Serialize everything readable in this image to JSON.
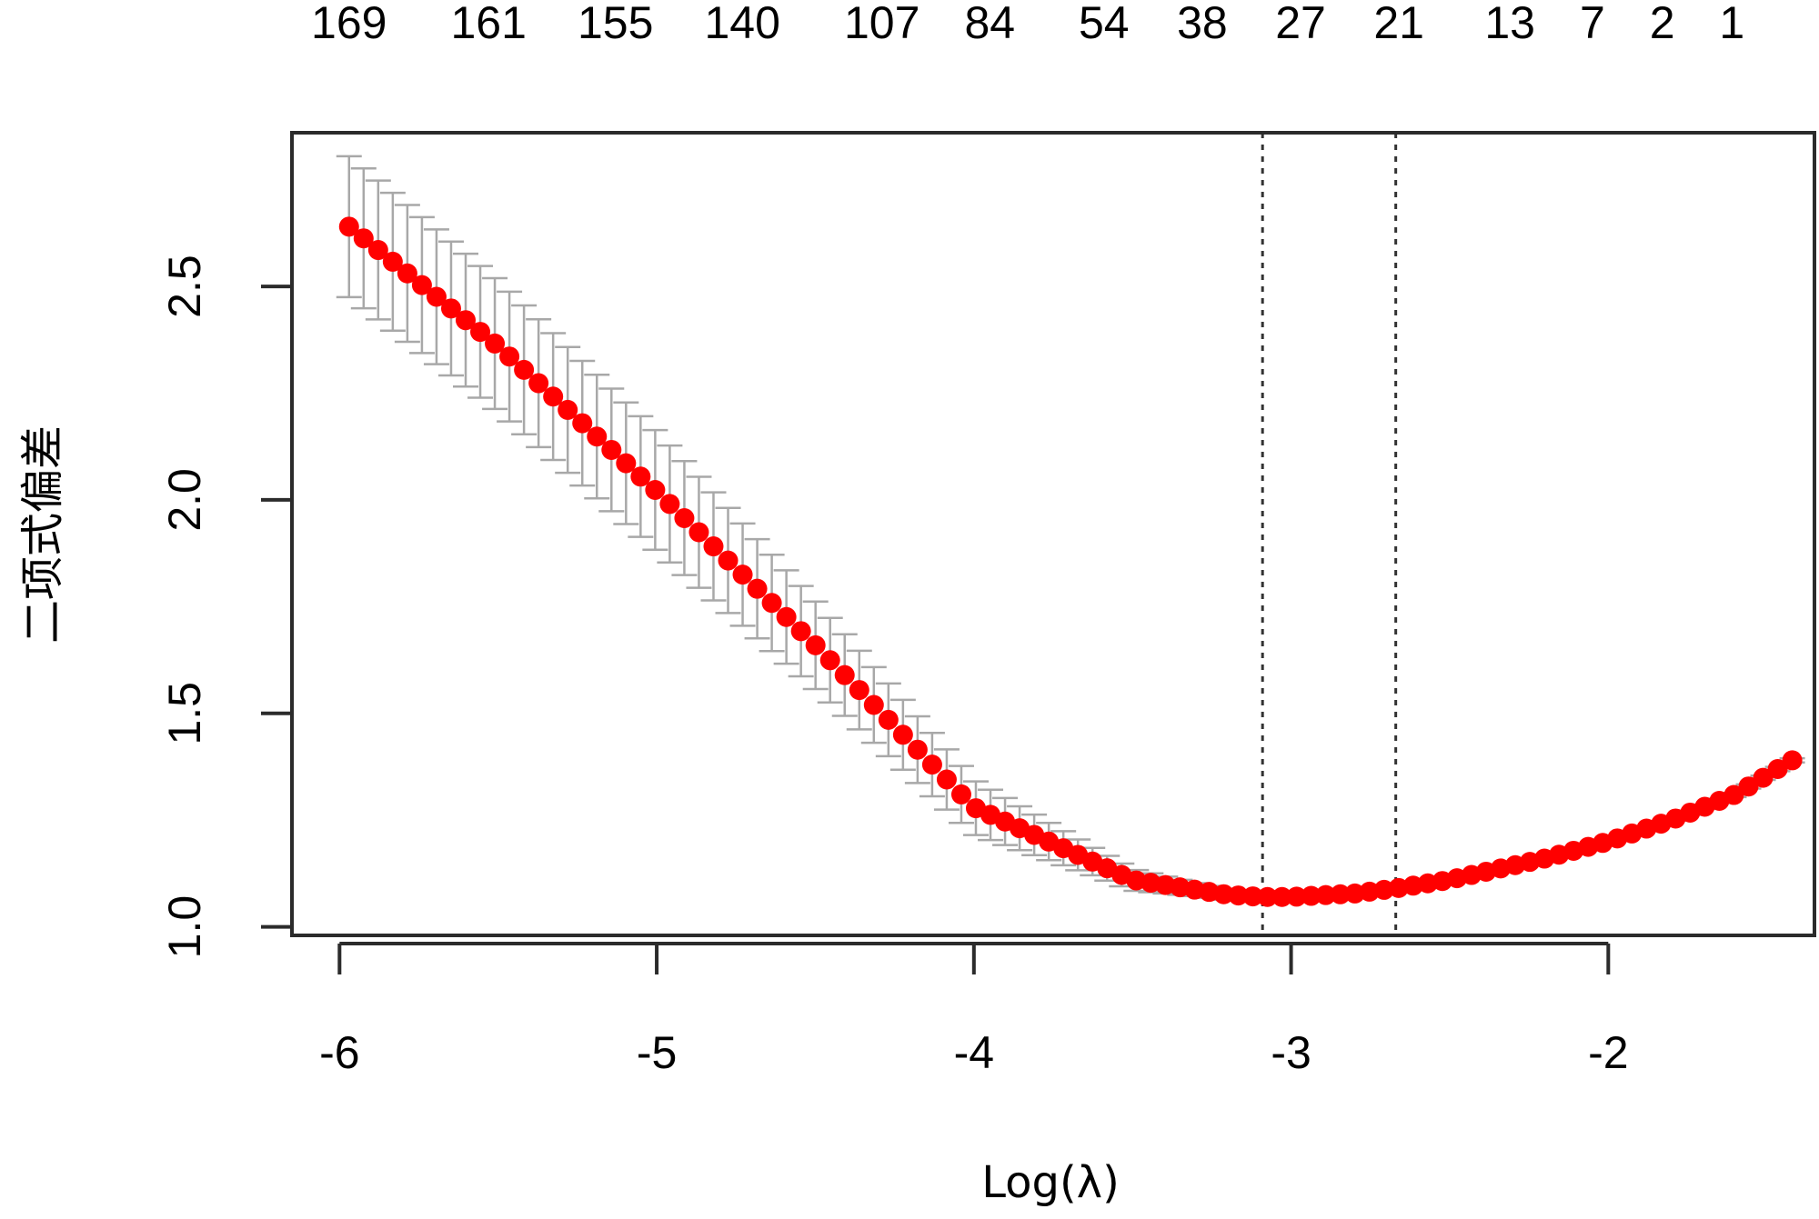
{
  "chart_data": {
    "type": "scatter",
    "title": "",
    "xlabel": "Log(λ)",
    "ylabel": "二项式偏差",
    "xlim": [
      -6.15,
      -1.35
    ],
    "ylim": [
      0.98,
      2.86
    ],
    "x_ticks": [
      -6,
      -5,
      -4,
      -3,
      -2
    ],
    "x_tick_labels": [
      "-6",
      "-5",
      "-4",
      "-3",
      "-2"
    ],
    "y_ticks": [
      1.0,
      1.5,
      2.0,
      2.5
    ],
    "y_tick_labels": [
      "1.0",
      "1.5",
      "2.0",
      "2.5"
    ],
    "top_axis": {
      "positions": [
        -5.97,
        -5.53,
        -5.13,
        -4.73,
        -4.29,
        -3.95,
        -3.59,
        -3.28,
        -2.97,
        -2.66,
        -2.31,
        -2.05,
        -1.83,
        -1.61
      ],
      "labels": [
        "169",
        "161",
        "155",
        "140",
        "107",
        "84",
        "54",
        "38",
        "27",
        "21",
        "13",
        "7",
        "2",
        "1"
      ]
    },
    "vlines": [
      -3.09,
      -2.67
    ],
    "point_color": "#ff0000",
    "errorbar_color": "#a8a8a8",
    "series": [
      {
        "x_range": [
          -5.97,
          -1.42
        ],
        "count": 100,
        "curve": {
          "x": [
            -5.97,
            -5.5,
            -5.0,
            -4.5,
            -4.0,
            -3.5,
            -3.2,
            -3.09,
            -3.0,
            -2.8,
            -2.67,
            -2.5,
            -2.2,
            -2.0,
            -1.8,
            -1.6,
            -1.42
          ],
          "y": [
            2.64,
            2.36,
            2.02,
            1.66,
            1.28,
            1.11,
            1.075,
            1.07,
            1.07,
            1.078,
            1.09,
            1.11,
            1.16,
            1.2,
            1.25,
            1.31,
            1.39
          ]
        },
        "error_half_width": {
          "x": [
            -5.97,
            -5.0,
            -4.2,
            -3.6,
            -3.3,
            -3.0,
            -2.5,
            -2.0,
            -1.42
          ],
          "y": [
            0.165,
            0.14,
            0.08,
            0.03,
            0.015,
            0.008,
            0.005,
            0.005,
            0.005
          ]
        }
      }
    ]
  }
}
